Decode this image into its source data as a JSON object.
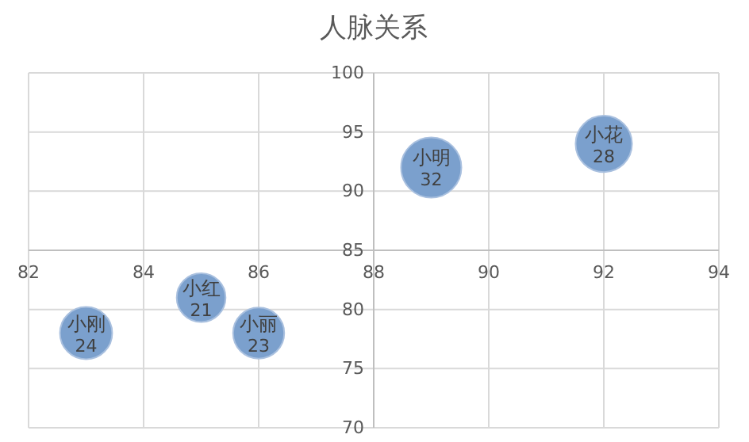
{
  "chart_data": {
    "type": "bubble",
    "title": "人脉关系",
    "xlim": [
      82,
      94
    ],
    "ylim": [
      70,
      100
    ],
    "xticks": [
      82,
      84,
      86,
      88,
      90,
      92,
      94
    ],
    "yticks": [
      70,
      75,
      80,
      85,
      90,
      95,
      100
    ],
    "grid": true,
    "series": [
      {
        "name": "小刚",
        "color": "#7ba0cd",
        "x": [
          83
        ],
        "values": [
          78
        ],
        "sizes": [
          24
        ],
        "value_labels": [
          "24"
        ]
      },
      {
        "name": "小红",
        "color": "#7ba0cd",
        "x": [
          85
        ],
        "values": [
          81
        ],
        "sizes": [
          21
        ],
        "value_labels": [
          "21"
        ]
      },
      {
        "name": "小丽",
        "color": "#7ba0cd",
        "x": [
          86
        ],
        "values": [
          78
        ],
        "sizes": [
          23
        ],
        "value_labels": [
          "23"
        ]
      },
      {
        "name": "小明",
        "color": "#7ba0cd",
        "x": [
          89
        ],
        "values": [
          92
        ],
        "sizes": [
          32
        ],
        "value_labels": [
          "32"
        ]
      },
      {
        "name": "小花",
        "color": "#7ba0cd",
        "x": [
          92
        ],
        "values": [
          94
        ],
        "sizes": [
          28
        ],
        "value_labels": [
          "28"
        ]
      }
    ]
  }
}
